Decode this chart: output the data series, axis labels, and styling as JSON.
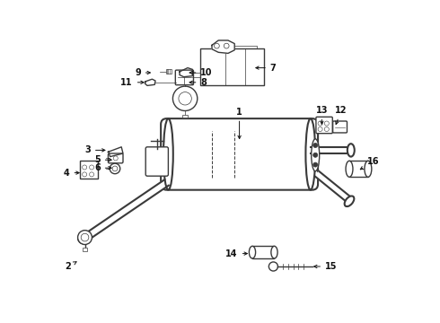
{
  "bg_color": "#ffffff",
  "lc": "#3a3a3a",
  "label_fs": 7,
  "parts_labels": {
    "1": [
      0.56,
      0.56,
      0.56,
      0.64,
      "center",
      "bottom"
    ],
    "2": [
      0.065,
      0.195,
      0.04,
      0.175,
      "right",
      "center"
    ],
    "3": [
      0.155,
      0.535,
      0.1,
      0.535,
      "right",
      "center"
    ],
    "4": [
      0.075,
      0.465,
      0.035,
      0.465,
      "right",
      "center"
    ],
    "5": [
      0.175,
      0.505,
      0.13,
      0.505,
      "right",
      "center"
    ],
    "6": [
      0.175,
      0.48,
      0.13,
      0.48,
      "right",
      "center"
    ],
    "7": [
      0.6,
      0.79,
      0.655,
      0.79,
      "left",
      "center"
    ],
    "8": [
      0.395,
      0.745,
      0.44,
      0.745,
      "left",
      "center"
    ],
    "9": [
      0.295,
      0.775,
      0.255,
      0.775,
      "right",
      "center"
    ],
    "10": [
      0.395,
      0.775,
      0.44,
      0.775,
      "left",
      "center"
    ],
    "11": [
      0.275,
      0.745,
      0.23,
      0.745,
      "right",
      "center"
    ],
    "12": [
      0.855,
      0.605,
      0.875,
      0.645,
      "center",
      "bottom"
    ],
    "13": [
      0.815,
      0.605,
      0.815,
      0.645,
      "center",
      "bottom"
    ],
    "14": [
      0.595,
      0.215,
      0.555,
      0.215,
      "right",
      "center"
    ],
    "15": [
      0.78,
      0.175,
      0.825,
      0.175,
      "left",
      "center"
    ],
    "16": [
      0.925,
      0.47,
      0.955,
      0.5,
      "left",
      "center"
    ]
  }
}
